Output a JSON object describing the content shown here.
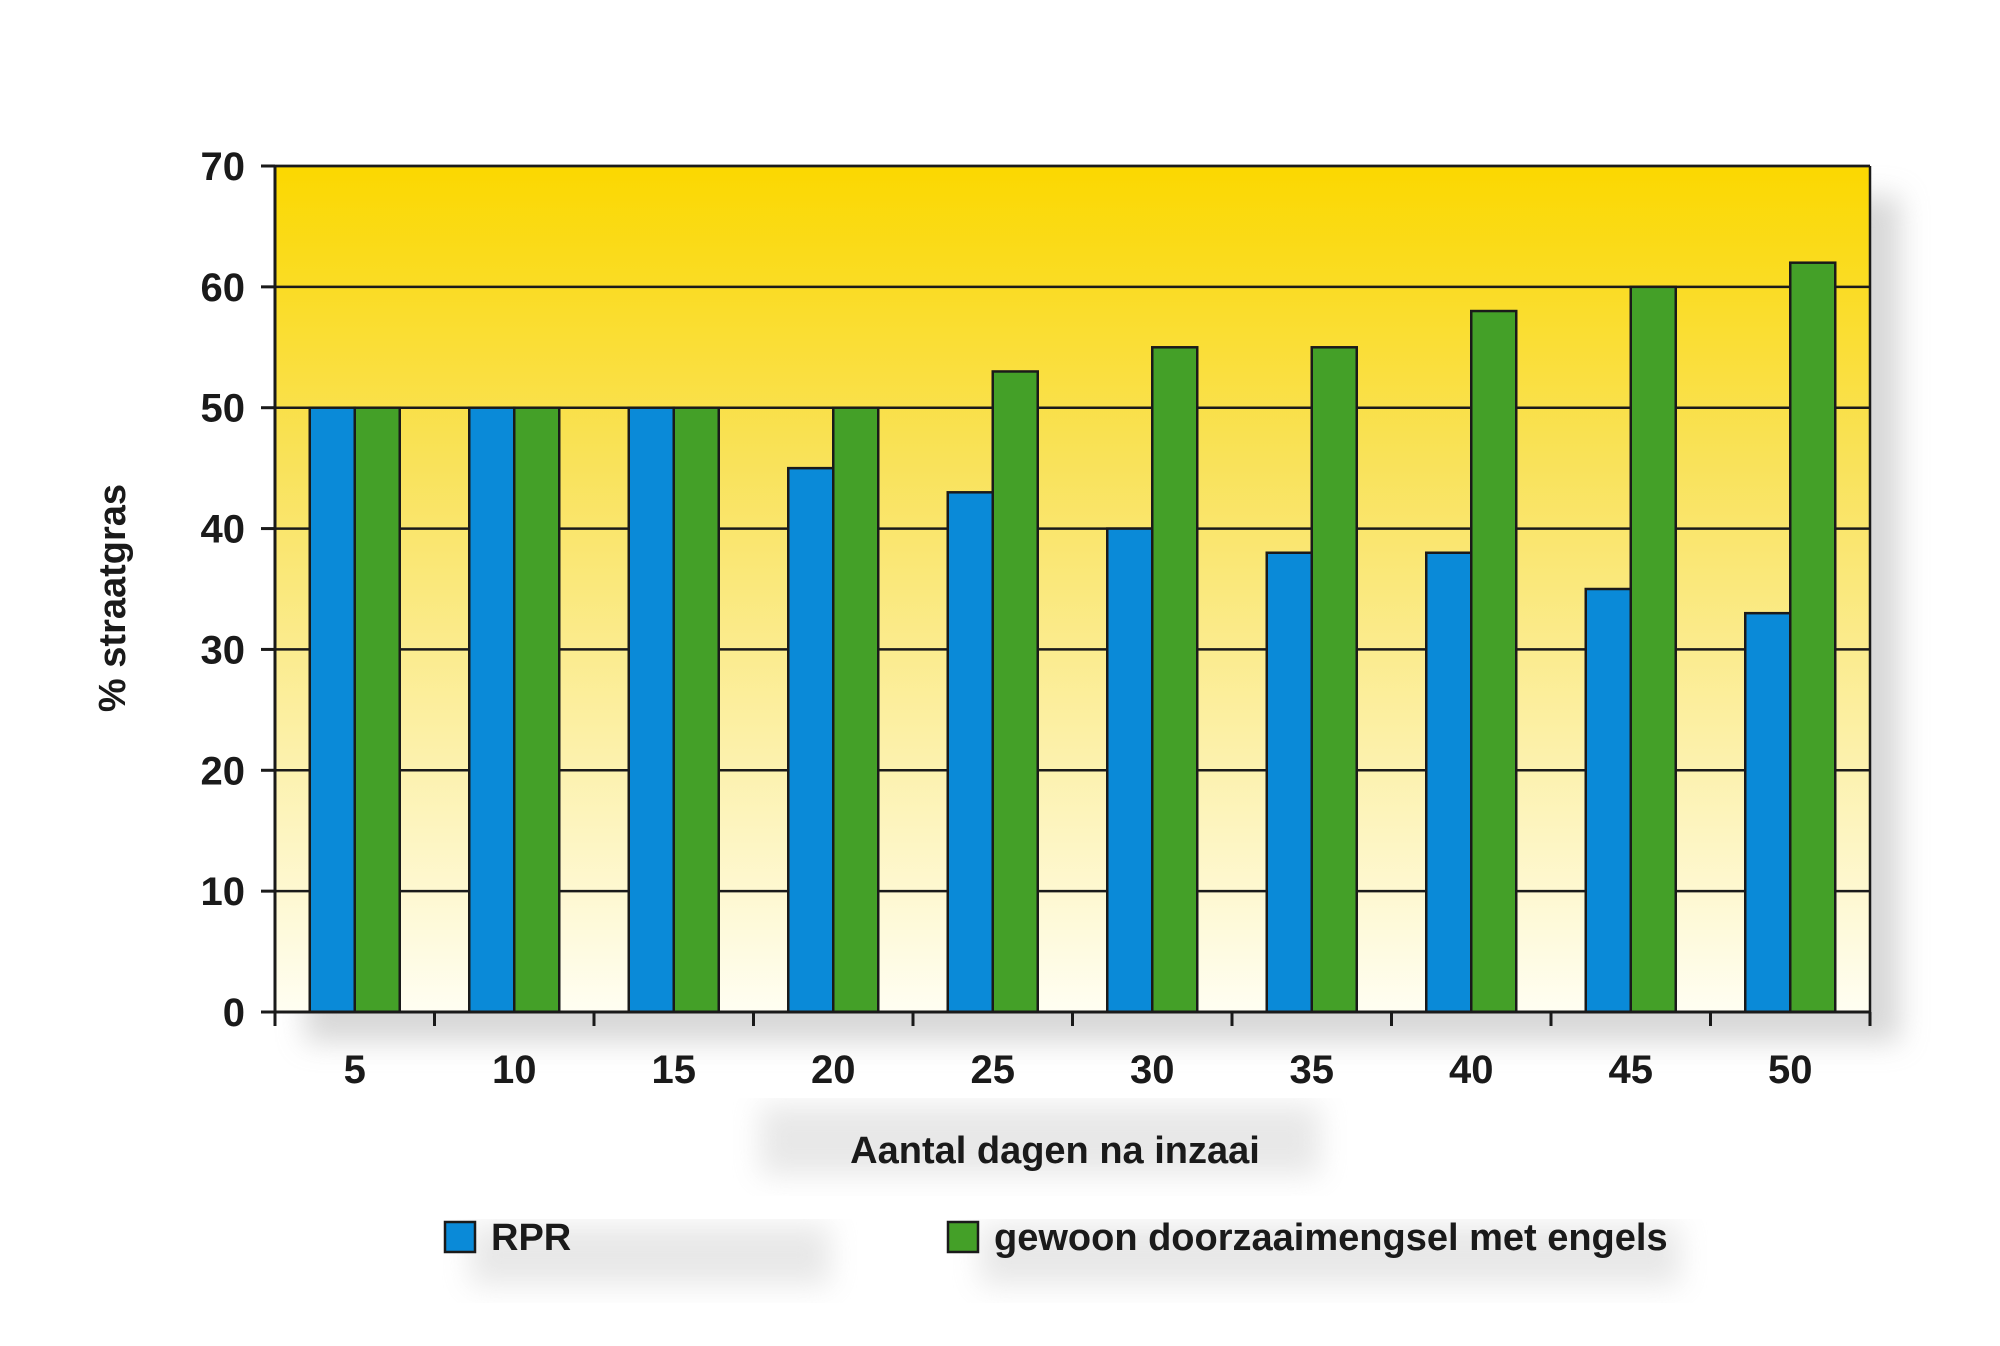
{
  "chart_data": {
    "type": "bar",
    "categories": [
      "5",
      "10",
      "15",
      "20",
      "25",
      "30",
      "35",
      "40",
      "45",
      "50"
    ],
    "series": [
      {
        "name": "RPR",
        "color": "#0a8ad8",
        "values": [
          50,
          50,
          50,
          45,
          43,
          40,
          38,
          38,
          35,
          33
        ]
      },
      {
        "name": "gewoon doorzaaimengsel met engels",
        "color": "#44a028",
        "values": [
          50,
          50,
          50,
          50,
          53,
          55,
          55,
          58,
          60,
          62
        ]
      }
    ],
    "xlabel": "Aantal dagen na inzaai",
    "ylabel": "% straatgras",
    "ylim": [
      0,
      70
    ],
    "yticks": [
      0,
      10,
      20,
      30,
      40,
      50,
      60,
      70
    ],
    "grid": true,
    "legend_position": "bottom",
    "background_gradient": [
      "#fbd800",
      "#fffef2"
    ]
  }
}
